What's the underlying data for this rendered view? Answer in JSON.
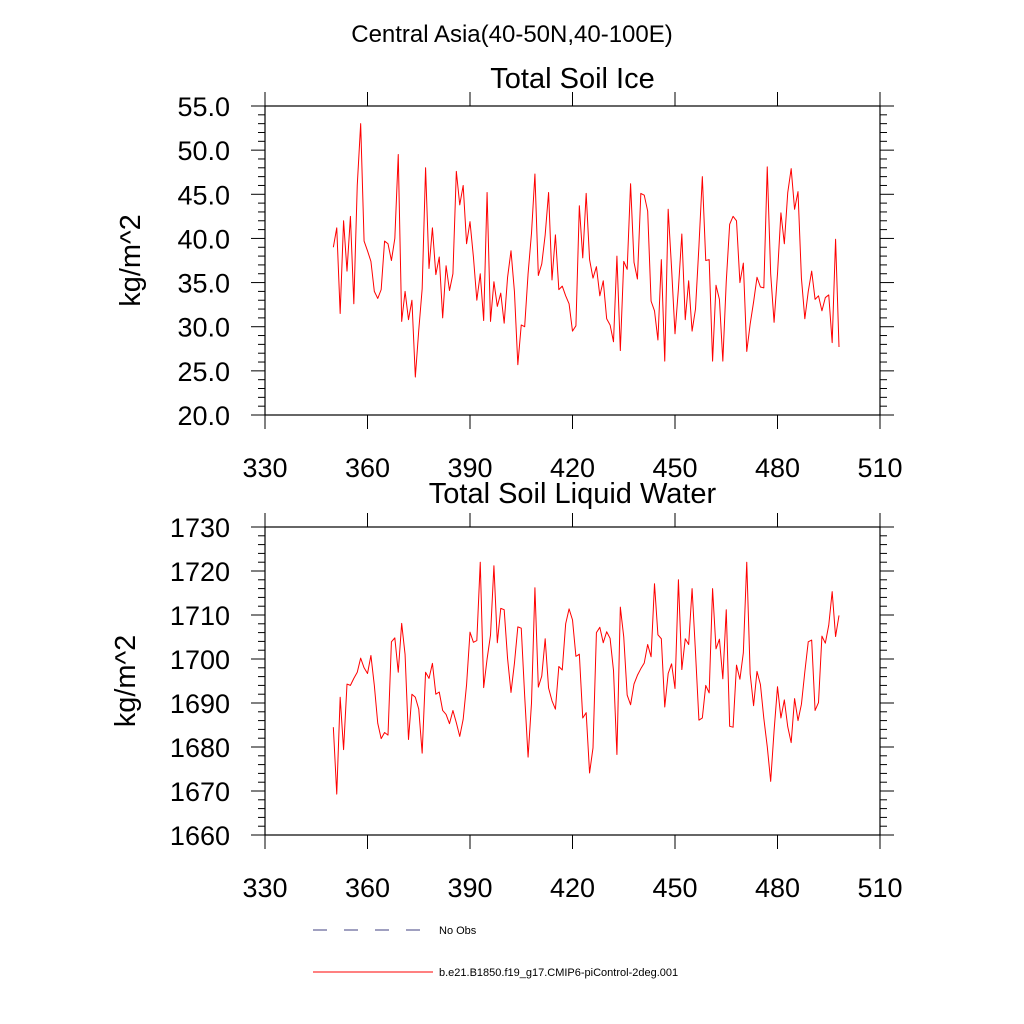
{
  "suptitle": "Central Asia(40-50N,40-100E)",
  "colors": {
    "model": "#ff0000",
    "obs": "#404080",
    "axis": "#000000"
  },
  "legend": [
    {
      "label": "No Obs",
      "style": "dashed",
      "color": "#404080"
    },
    {
      "label": "b.e21.B1850.f19_g17.CMIP6-piControl-2deg.001",
      "style": "solid",
      "color": "#ff0000"
    }
  ],
  "chart_data": [
    {
      "type": "line",
      "title": "Total Soil Ice",
      "xlabel": "",
      "ylabel": "kg/m^2",
      "xlim": [
        330,
        510
      ],
      "ylim": [
        20,
        55
      ],
      "xticks": [
        330,
        360,
        390,
        420,
        450,
        480,
        510
      ],
      "yticks": [
        20,
        25,
        30,
        35,
        40,
        45,
        50,
        55
      ],
      "ytick_labels": [
        "20.0",
        "25.0",
        "30.0",
        "35.0",
        "40.0",
        "45.0",
        "50.0",
        "55.0"
      ],
      "ytick_minor_step": 1,
      "x_start": 350,
      "series": [
        {
          "name": "b.e21.B1850.f19_g17.CMIP6-piControl-2deg.001",
          "color": "#ff0000",
          "values": [
            39.0,
            41.2,
            31.5,
            42.0,
            36.3,
            42.5,
            32.6,
            46.0,
            53.0,
            39.7,
            38.6,
            37.4,
            34.0,
            33.2,
            34.2,
            39.7,
            39.4,
            37.5,
            40.0,
            49.5,
            30.6,
            34.0,
            30.8,
            33.0,
            24.3,
            29.6,
            34.3,
            48.0,
            36.6,
            41.2,
            35.9,
            37.9,
            31.0,
            36.9,
            34.1,
            36.0,
            47.6,
            43.8,
            46.0,
            39.4,
            41.9,
            37.9,
            33.0,
            36.0,
            30.7,
            45.2,
            30.6,
            35.1,
            32.3,
            33.8,
            30.4,
            35.6,
            38.6,
            34.0,
            25.7,
            30.2,
            30.0,
            36.0,
            40.6,
            47.3,
            35.8,
            37.1,
            40.4,
            45.2,
            35.3,
            40.4,
            34.2,
            34.6,
            33.5,
            32.6,
            29.5,
            30.1,
            43.7,
            37.8,
            45.1,
            37.6,
            35.5,
            36.8,
            33.5,
            35.2,
            30.9,
            30.2,
            28.3,
            38.0,
            27.3,
            37.4,
            36.5,
            46.2,
            37.3,
            35.4,
            45.1,
            44.9,
            43.1,
            32.9,
            31.8,
            28.5,
            37.6,
            26.1,
            43.3,
            36.6,
            29.2,
            34.3,
            40.5,
            30.8,
            35.2,
            29.5,
            32.0,
            39.1,
            47.0,
            37.5,
            37.6,
            26.1,
            34.7,
            33.1,
            26.1,
            35.1,
            41.6,
            42.5,
            42.0,
            35.0,
            37.2,
            27.2,
            30.3,
            32.8,
            35.6,
            34.5,
            34.4,
            48.1,
            36.0,
            30.5,
            36.0,
            42.9,
            39.4,
            45.2,
            47.9,
            43.3,
            45.3,
            35.5,
            30.9,
            34.0,
            36.3,
            33.1,
            33.5,
            31.8,
            33.3,
            33.6,
            28.2,
            39.9,
            27.7
          ]
        }
      ]
    },
    {
      "type": "line",
      "title": "Total Soil Liquid Water",
      "xlabel": "",
      "ylabel": "kg/m^2",
      "xlim": [
        330,
        510
      ],
      "ylim": [
        1660,
        1730
      ],
      "xticks": [
        330,
        360,
        390,
        420,
        450,
        480,
        510
      ],
      "yticks": [
        1660,
        1670,
        1680,
        1690,
        1700,
        1710,
        1720,
        1730
      ],
      "ytick_labels": [
        "1660",
        "1670",
        "1680",
        "1690",
        "1700",
        "1710",
        "1720",
        "1730"
      ],
      "ytick_minor_step": 2,
      "x_start": 350,
      "series": [
        {
          "name": "b.e21.B1850.f19_g17.CMIP6-piControl-2deg.001",
          "color": "#ff0000",
          "values": [
            1684.5,
            1669.3,
            1691.3,
            1679.4,
            1694.3,
            1694.0,
            1695.6,
            1697.0,
            1700.2,
            1698.0,
            1696.7,
            1700.8,
            1694.0,
            1685.4,
            1681.9,
            1683.3,
            1682.7,
            1703.9,
            1704.8,
            1697.0,
            1708.1,
            1701.0,
            1681.7,
            1692.0,
            1691.3,
            1688.6,
            1678.6,
            1697.0,
            1695.6,
            1699.0,
            1692.0,
            1692.5,
            1688.3,
            1687.4,
            1685.3,
            1688.3,
            1685.5,
            1682.4,
            1686.3,
            1694.2,
            1706.1,
            1703.8,
            1704.2,
            1722.0,
            1693.5,
            1700.0,
            1705.4,
            1721.2,
            1703.7,
            1711.5,
            1711.2,
            1700.1,
            1692.4,
            1699.0,
            1707.3,
            1707.0,
            1691.6,
            1677.7,
            1690.0,
            1716.2,
            1693.6,
            1696.1,
            1704.6,
            1693.4,
            1690.5,
            1688.6,
            1698.3,
            1697.5,
            1708.0,
            1711.4,
            1708.9,
            1700.6,
            1701.1,
            1686.6,
            1687.8,
            1674.1,
            1679.8,
            1706.0,
            1707.2,
            1703.7,
            1706.2,
            1704.7,
            1697.4,
            1678.3,
            1711.8,
            1705.0,
            1691.8,
            1689.6,
            1694.3,
            1696.3,
            1697.8,
            1699.1,
            1703.3,
            1700.5,
            1717.1,
            1705.5,
            1704.6,
            1689.1,
            1696.7,
            1698.9,
            1693.3,
            1718.0,
            1697.6,
            1704.6,
            1703.3,
            1716.0,
            1701.5,
            1686.1,
            1686.6,
            1694.0,
            1692.3,
            1716.0,
            1702.3,
            1704.5,
            1695.5,
            1711.2,
            1684.7,
            1684.5,
            1698.6,
            1695.4,
            1701.4,
            1722.0,
            1696.6,
            1689.4,
            1697.2,
            1694.2,
            1686.5,
            1680.1,
            1672.2,
            1683.7,
            1693.7,
            1686.6,
            1690.7,
            1684.6,
            1681.0,
            1691.0,
            1686.0,
            1689.7,
            1697.1,
            1703.9,
            1704.3,
            1688.3,
            1690.1,
            1705.2,
            1703.6,
            1707.7,
            1715.3,
            1705.1,
            1709.9
          ]
        }
      ]
    }
  ]
}
